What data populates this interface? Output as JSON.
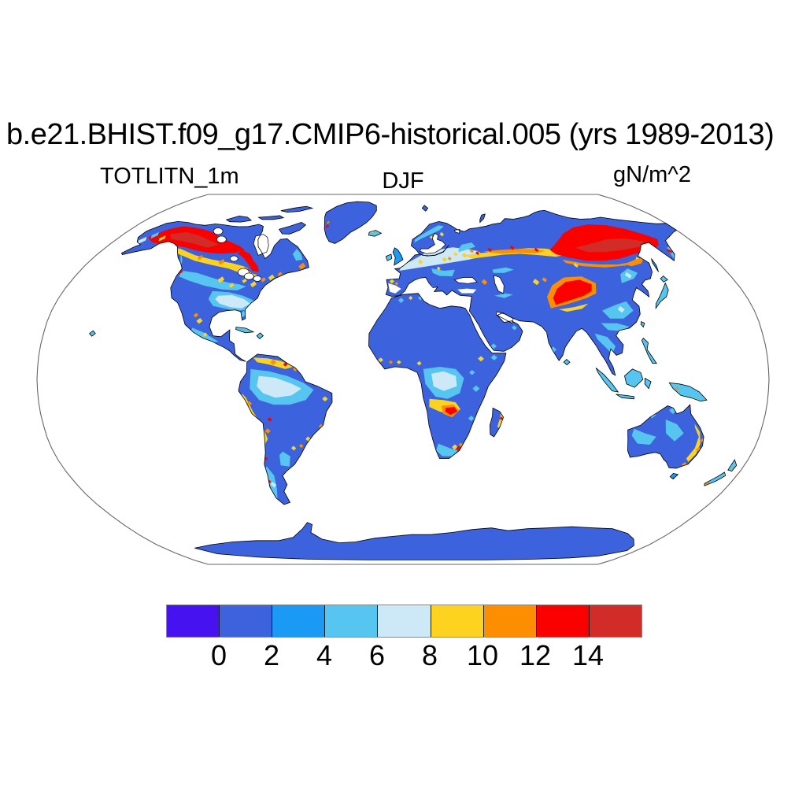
{
  "header": {
    "title": "b.e21.BHIST.f09_g17.CMIP6-historical.005 (yrs 1989-2013)",
    "variable": "TOTLITN_1m",
    "season": "DJF",
    "units": "gN/m^2"
  },
  "chart_data": {
    "type": "heatmap",
    "subtype": "filled-cell world map (climate model output, NCL-style plot)",
    "projection": "Robinson",
    "title": "b.e21.BHIST.f09_g17.CMIP6-historical.005 (yrs 1989-2013)",
    "variable": "TOTLITN_1m",
    "season": "DJF",
    "units": "gN/m^2",
    "colorbar": {
      "orientation": "horizontal",
      "levels": [
        0,
        2,
        4,
        6,
        8,
        10,
        12,
        14
      ],
      "tick_labels": [
        "0",
        "2",
        "4",
        "6",
        "8",
        "10",
        "12",
        "14"
      ],
      "colors": [
        "#4612f0",
        "#3c63dd",
        "#1b9af5",
        "#56c5ef",
        "#cde8f7",
        "#fdd320",
        "#fd8d01",
        "#fa0100",
        "#d22c28"
      ],
      "meaning": "bin colors: <0, 0-2, 2-4, 4-6, 6-8, 8-10, 10-12, 12-14, >14 gN/m^2"
    },
    "map_colors": {
      "ocean_and_missing": "#ffffff",
      "coastline": "#000000",
      "frame": "#666666"
    },
    "regions_by_value": [
      {
        "range": ">14",
        "color": "#d22c28",
        "areas": "cores of Alaska-northwest Canada boreal belt and of eastern Siberia"
      },
      {
        "range": "12-14",
        "color": "#fa0100",
        "areas": "Alaska-NW Canada, tongue SE of Hudson Bay, central/eastern Siberia, Tibet-Mongolia patch, Zambia patch, Lesotho patch, scattered coastal cells (Cape York, New Guinea south coast, Kamchatka, Madagascar, Chile coast, Falklands)"
      },
      {
        "range": "8-12",
        "color": "#fdd320 #fd8d01",
        "areas": "yellow/orange band across western Russia to Urals, fringes of boreal hotspots, central US belt, northern South America fringe, Andes, Angola-Zambia band, Ethiopian highlands, east Australian coast, Amur region, Tien Shan, Caucasus, European spots"
      },
      {
        "range": "4-8",
        "color": "#56c5ef #cde8f7",
        "areas": "Amazon basin (pale core, cyan ring), Congo basin, eastern US, most of Europe, Scandinavia patches, SE China and Indochina, NE China, Indonesia, New Guinea, Japan, New Zealand, Patagonia, UK/Ireland/Iceland, Cuba"
      },
      {
        "range": "0-4",
        "color": "#3c63dd #1b9af5",
        "areas": "Sahara, Arabia, India, central Australia, tundra of northern Canada and Siberia, Canadian Arctic islands, Greenland, Antarctica, eastern Brazil, southern Africa interior, Kazakhstan/Central Asia"
      },
      {
        "range": "no data",
        "color": "#ffffff",
        "areas": "oceans, Hudson Bay, Great Lakes, Baltic, Black and Caspian Seas"
      }
    ]
  }
}
